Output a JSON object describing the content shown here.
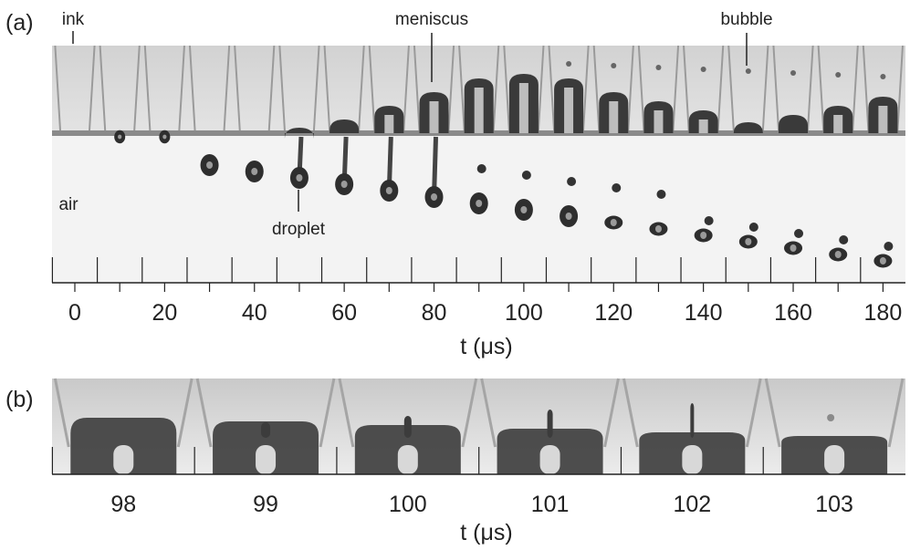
{
  "panels": [
    {
      "label": "(a)",
      "ticks": [
        0,
        20,
        40,
        60,
        80,
        100,
        120,
        140,
        160,
        180
      ],
      "axis_label": "t (μs)",
      "annotations": {
        "ink": "ink",
        "meniscus": "meniscus",
        "bubble": "bubble",
        "air": "air",
        "droplet": "droplet"
      }
    },
    {
      "label": "(b)",
      "ticks": [
        98,
        99,
        100,
        101,
        102,
        103
      ],
      "axis_label": "t (μs)"
    }
  ]
}
